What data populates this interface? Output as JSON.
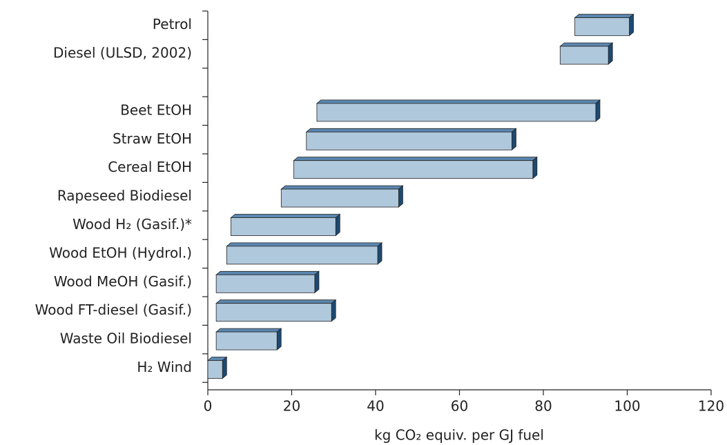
{
  "chart_data": {
    "type": "floating-bar",
    "categories": [
      "Petrol",
      "Diesel (ULSD, 2002)",
      null,
      "Beet EtOH",
      "Straw EtOH",
      "Cereal EtOH",
      "Rapeseed Biodiesel",
      "Wood H₂ (Gasif.)*",
      "Wood EtOH (Hydrol.)",
      "Wood MeOH (Gasif.)",
      "Wood FT-diesel (Gasif.)",
      "Waste Oil Biodiesel",
      "H₂ Wind"
    ],
    "low": [
      87.5,
      84,
      null,
      26,
      23.5,
      20.5,
      17.5,
      5.5,
      4.5,
      2,
      2,
      2,
      0
    ],
    "high": [
      100.5,
      95.5,
      null,
      92.5,
      72.5,
      77.5,
      45.5,
      30.5,
      40.5,
      25.5,
      29.5,
      16.5,
      3.5
    ],
    "color": "#b0c8dc",
    "xlabel": "kg CO₂ equiv. per GJ fuel",
    "xlim": [
      0,
      120
    ],
    "xticks": [
      0,
      20,
      40,
      60,
      80,
      100,
      120
    ]
  }
}
